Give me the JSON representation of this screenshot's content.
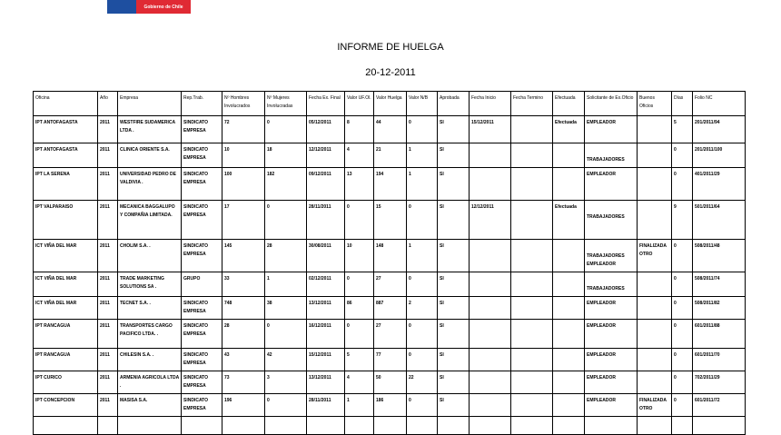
{
  "logo": {
    "text": "Gobierno de Chile",
    "colors": [
      "#1e4fa0",
      "#e02a34"
    ]
  },
  "title": "INFORME DE HUELGA",
  "date": "20-12-2011",
  "columns": [
    "Oficina",
    "Año",
    "Empresa",
    "Rep.Trab.",
    "Nº Hombres Involucrados",
    "Nº Mujeres Involucradas",
    "Fecha Ex. Final",
    "Valor UF.Ol.",
    "Valor Huelga",
    "Valor N/B",
    "Aprobada",
    "Fecha Inicio",
    "Fecha Termino",
    "Efectuada",
    "Solicitante de Ex.Oficio",
    "Buenos Oficios",
    "Días",
    "Folio NC"
  ],
  "rows": [
    [
      "IPT ANTOFAGASTA",
      "2011",
      "WESTFIRE SUDAMERICA LTDA .",
      "SINDICATO EMPRESA",
      "72",
      "0",
      "05/12/2011",
      "8",
      "44",
      "0",
      "SI",
      "15/12/2011",
      "",
      "Efectuada",
      "EMPLEADOR",
      "",
      "5",
      "201/2011/94"
    ],
    [
      "IPT ANTOFAGASTA",
      "2011",
      "CLINICA ORIENTE S.A.",
      "SINDICATO EMPRESA",
      "10",
      "18",
      "12/12/2011",
      "4",
      "21",
      "1",
      "SI",
      "",
      "",
      "",
      "TRABAJADORES",
      "",
      "0",
      "201/2011/100"
    ],
    [
      "IPT LA SERENA",
      "2011",
      "UNIVERSIDAD PEDRO DE VALDIVIA .",
      "SINDICATO EMPRESA",
      "100",
      "182",
      "09/12/2011",
      "13",
      "194",
      "1",
      "SI",
      "",
      "",
      "",
      "EMPLEADOR",
      "",
      "0",
      "401/2011/29"
    ],
    [
      "IPT VALPARAISO",
      "2011",
      "MECANICA BAGGALUPO Y COMPAÑIA LIMITADA.",
      "SINDICATO EMPRESA",
      "17",
      "0",
      "28/11/2011",
      "0",
      "15",
      "0",
      "SI",
      "12/12/2011",
      "",
      "Efectuada",
      "TRABAJADORES",
      "",
      "9",
      "501/2011/64"
    ],
    [
      "ICT VIÑA DEL MAR",
      "2011",
      "CHOLIM S.A. .",
      "SINDICATO EMPRESA",
      "145",
      "28",
      "30/08/2011",
      "10",
      "148",
      "1",
      "SI",
      "",
      "",
      "",
      "TRABAJADORES EMPLEADOR",
      "FINALIZADA OTRO",
      "0",
      "508/2011/48"
    ],
    [
      "ICT VIÑA DEL MAR",
      "2011",
      "TRADE MARKETING SOLUTIONS SA .",
      "GRUPO",
      "33",
      "1",
      "02/12/2011",
      "0",
      "27",
      "0",
      "SI",
      "",
      "",
      "",
      "TRABAJADORES",
      "",
      "0",
      "508/2011/74"
    ],
    [
      "ICT VIÑA DEL MAR",
      "2011",
      "TECNET S.A. .",
      "SINDICATO EMPRESA",
      "748",
      "38",
      "13/12/2011",
      "86",
      "887",
      "2",
      "SI",
      "",
      "",
      "",
      "EMPLEADOR",
      "",
      "0",
      "508/2011/82"
    ],
    [
      "IPT RANCAGUA",
      "2011",
      "TRANSPORTES CARGO PACIFICO LTDA. .",
      "SINDICATO EMPRESA",
      "28",
      "0",
      "16/12/2011",
      "0",
      "27",
      "0",
      "SI",
      "",
      "",
      "",
      "EMPLEADOR",
      "",
      "0",
      "601/2011/88"
    ],
    [
      "IPT RANCAGUA",
      "2011",
      "CHILESIN S.A. .",
      "SINDICATO EMPRESA",
      "43",
      "42",
      "15/12/2011",
      "5",
      "77",
      "0",
      "SI",
      "",
      "",
      "",
      "EMPLEADOR",
      "",
      "0",
      "601/2011/70"
    ],
    [
      "IPT CURICO",
      "2011",
      "ARMENIA AGRICOLA LTDA .",
      "SINDICATO EMPRESA",
      "73",
      "3",
      "13/12/2011",
      "4",
      "50",
      "22",
      "SI",
      "",
      "",
      "",
      "EMPLEADOR",
      "",
      "0",
      "702/2011/29"
    ],
    [
      "IPT CONCEPCION",
      "2011",
      "MASISA S.A.",
      "SINDICATO EMPRESA",
      "196",
      "0",
      "28/11/2011",
      "1",
      "186",
      "0",
      "SI",
      "",
      "",
      "",
      "EMPLEADOR",
      "FINALIZADA OTRO",
      "0",
      "601/2011/72"
    ]
  ]
}
